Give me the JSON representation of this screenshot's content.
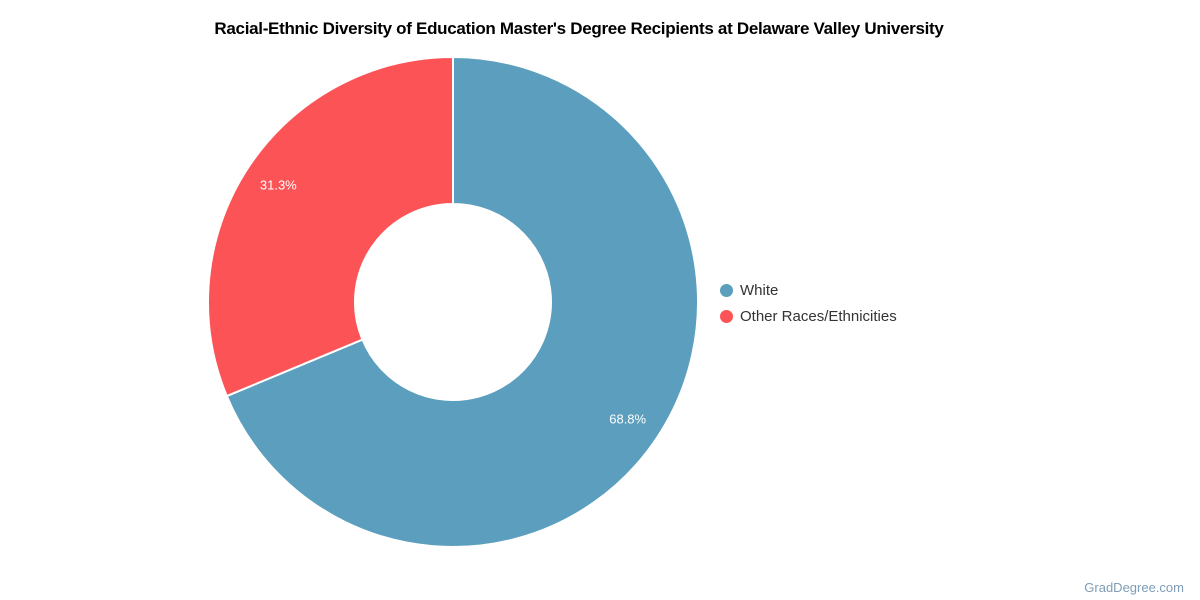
{
  "title": "Racial-Ethnic Diversity of Education Master's Degree Recipients at Delaware Valley University",
  "footer": {
    "brand": "GradDegree.com",
    "brand_color": "#7E9DB6"
  },
  "chart_data": {
    "type": "pie",
    "subtype": "donut",
    "title": "Racial-Ethnic Diversity of Education Master's Degree Recipients at Delaware Valley University",
    "legend_position": "right",
    "start_angle_deg": 0,
    "direction": "clockwise",
    "inner_radius_pct": 40,
    "data_label_color": "#FFFFFF",
    "slice_border_color": "#FFFFFF",
    "segments": [
      {
        "label": "White",
        "value": 68.8,
        "display": "68.8%",
        "color": "#5B9EBD"
      },
      {
        "label": "Other Races/Ethnicities",
        "value": 31.3,
        "display": "31.3%",
        "color": "#FC5356"
      }
    ]
  }
}
